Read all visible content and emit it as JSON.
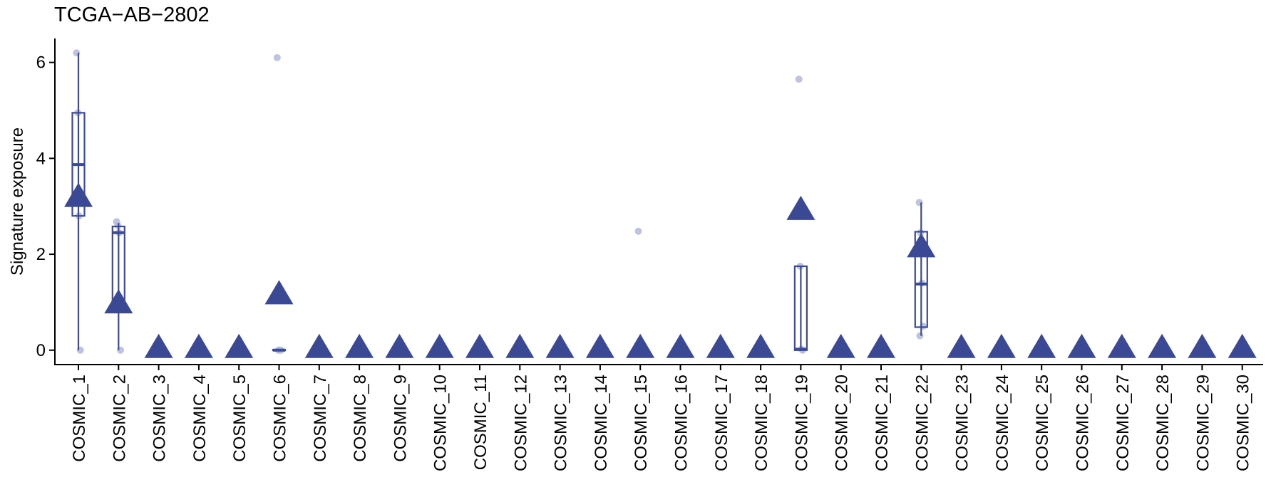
{
  "chart_data": {
    "type": "box",
    "title": "TCGA−AB−2802",
    "y_label": "Signature exposure",
    "categories": [
      "COSMIC_1",
      "COSMIC_2",
      "COSMIC_3",
      "COSMIC_4",
      "COSMIC_5",
      "COSMIC_6",
      "COSMIC_7",
      "COSMIC_8",
      "COSMIC_9",
      "COSMIC_10",
      "COSMIC_11",
      "COSMIC_12",
      "COSMIC_13",
      "COSMIC_14",
      "COSMIC_15",
      "COSMIC_16",
      "COSMIC_17",
      "COSMIC_18",
      "COSMIC_19",
      "COSMIC_20",
      "COSMIC_21",
      "COSMIC_22",
      "COSMIC_23",
      "COSMIC_24",
      "COSMIC_25",
      "COSMIC_26",
      "COSMIC_27",
      "COSMIC_28",
      "COSMIC_29",
      "COSMIC_30"
    ],
    "boxes": [
      {
        "min": 0,
        "q1": 2.8,
        "median": 3.87,
        "q3": 4.95,
        "max": 6.2
      },
      {
        "min": 0,
        "q1": 1.0,
        "median": 2.45,
        "q3": 2.58,
        "max": 2.65
      },
      null,
      null,
      null,
      {
        "min": 0,
        "q1": 0,
        "median": 0,
        "q3": 0.01,
        "max": 0.01
      },
      null,
      null,
      null,
      null,
      null,
      null,
      null,
      null,
      null,
      null,
      null,
      null,
      {
        "min": 0,
        "q1": 0,
        "median": 0.02,
        "q3": 1.75,
        "max": 1.75
      },
      null,
      null,
      {
        "min": 0.3,
        "q1": 0.48,
        "median": 1.38,
        "q3": 2.47,
        "max": 3.08
      },
      null,
      null,
      null,
      null,
      null,
      null,
      null,
      null
    ],
    "points": [
      [
        6.2,
        4.95,
        2.8,
        0
      ],
      [
        2.68,
        2.6,
        2.45,
        0
      ],
      [],
      [],
      [],
      [
        6.1,
        0,
        0,
        0
      ],
      [],
      [],
      [],
      [],
      [],
      [],
      [],
      [],
      [
        2.48
      ],
      [],
      [],
      [],
      [
        5.65,
        1.75,
        0.02,
        0
      ],
      [],
      [],
      [
        3.08,
        2.45,
        1.4,
        0.5,
        0.3
      ],
      [],
      [],
      [],
      [],
      [],
      [],
      [],
      []
    ],
    "values": [
      3.15,
      0.93,
      0,
      0,
      0,
      1.12,
      0,
      0,
      0,
      0,
      0,
      0,
      0,
      0,
      0,
      0,
      0,
      0,
      2.88,
      0,
      0,
      2.1,
      0,
      0,
      0,
      0,
      0,
      0,
      0,
      0
    ],
    "ylim": [
      -0.3,
      6.5
    ],
    "yticks": [
      0,
      2,
      4,
      6
    ],
    "box_color": "#3a4a96",
    "point_color": "#b3b9da",
    "marker_color": "#3b4994"
  }
}
